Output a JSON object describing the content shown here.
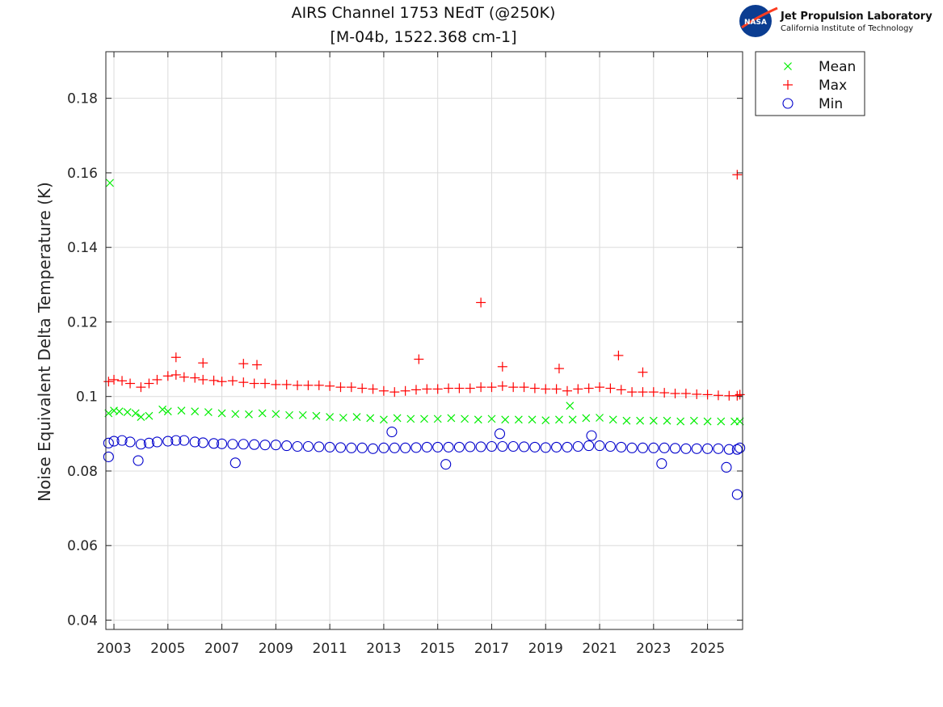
{
  "logo": {
    "name": "Jet Propulsion Laboratory",
    "subtitle": "California Institute of Technology",
    "badge_text": "NASA"
  },
  "chart_data": {
    "type": "scatter",
    "title": "AIRS Channel 1753 NEdT (@250K)",
    "subtitle": "[M-04b, 1522.368 cm-1]",
    "ylabel": "Noise Equivalent Delta Temperature (K)",
    "xlabel": "",
    "xlim": [
      2002.7,
      2026.3
    ],
    "ylim": [
      0.0375,
      0.1925
    ],
    "xticks": [
      "2003",
      "2005",
      "2007",
      "2009",
      "2011",
      "2013",
      "2015",
      "2017",
      "2019",
      "2021",
      "2023",
      "2025"
    ],
    "yticks": [
      "0.04",
      "0.06",
      "0.08",
      "0.1",
      "0.12",
      "0.14",
      "0.16",
      "0.18"
    ],
    "grid": true,
    "legend_position": "outside top-right",
    "colors": {
      "Mean": "#00ee00",
      "Max": "#ff0000",
      "Min": "#0000cc"
    },
    "series": [
      {
        "name": "Mean",
        "marker": "x",
        "x": [
          2002.8,
          2003.0,
          2003.2,
          2003.5,
          2003.8,
          2004.0,
          2004.3,
          2004.8,
          2005.0,
          2005.5,
          2006.0,
          2006.5,
          2007.0,
          2007.5,
          2008.0,
          2008.5,
          2009.0,
          2009.5,
          2010.0,
          2010.5,
          2011.0,
          2011.5,
          2012.0,
          2012.5,
          2013.0,
          2013.5,
          2014.0,
          2014.5,
          2015.0,
          2015.5,
          2016.0,
          2016.5,
          2017.0,
          2017.5,
          2018.0,
          2018.5,
          2019.0,
          2019.5,
          2019.9,
          2020.0,
          2020.5,
          2021.0,
          2021.5,
          2022.0,
          2022.5,
          2023.0,
          2023.5,
          2024.0,
          2024.5,
          2025.0,
          2025.5,
          2026.0,
          2026.2,
          2002.85
        ],
        "y": [
          0.0955,
          0.0962,
          0.096,
          0.0958,
          0.0955,
          0.0945,
          0.0948,
          0.0965,
          0.096,
          0.0962,
          0.096,
          0.0958,
          0.0955,
          0.0953,
          0.0952,
          0.0955,
          0.0953,
          0.095,
          0.095,
          0.0948,
          0.0945,
          0.0943,
          0.0945,
          0.0942,
          0.0938,
          0.0942,
          0.094,
          0.094,
          0.094,
          0.0942,
          0.094,
          0.0938,
          0.094,
          0.0938,
          0.0938,
          0.0938,
          0.0936,
          0.0938,
          0.0975,
          0.0938,
          0.0942,
          0.0943,
          0.0938,
          0.0935,
          0.0935,
          0.0935,
          0.0935,
          0.0933,
          0.0935,
          0.0933,
          0.0933,
          0.0933,
          0.0933,
          0.1573
        ]
      },
      {
        "name": "Max",
        "marker": "+",
        "x": [
          2002.8,
          2003.0,
          2003.3,
          2003.6,
          2004.0,
          2004.3,
          2004.6,
          2005.0,
          2005.3,
          2005.6,
          2006.0,
          2006.3,
          2006.7,
          2007.0,
          2007.4,
          2007.8,
          2008.2,
          2008.6,
          2009.0,
          2009.4,
          2009.8,
          2010.2,
          2010.6,
          2011.0,
          2011.4,
          2011.8,
          2012.2,
          2012.6,
          2013.0,
          2013.4,
          2013.8,
          2014.2,
          2014.6,
          2015.0,
          2015.4,
          2015.8,
          2016.2,
          2016.6,
          2017.0,
          2017.4,
          2017.8,
          2018.2,
          2018.6,
          2019.0,
          2019.4,
          2019.8,
          2020.2,
          2020.6,
          2021.0,
          2021.4,
          2021.8,
          2022.2,
          2022.6,
          2023.0,
          2023.4,
          2023.8,
          2024.2,
          2024.6,
          2025.0,
          2025.4,
          2025.8,
          2026.1,
          2026.2,
          2005.3,
          2006.3,
          2007.8,
          2008.3,
          2014.3,
          2016.6,
          2017.4,
          2019.5,
          2021.7,
          2022.6,
          2026.1
        ],
        "y": [
          0.104,
          0.1045,
          0.1042,
          0.1035,
          0.1025,
          0.1035,
          0.1045,
          0.1055,
          0.1058,
          0.1052,
          0.105,
          0.1045,
          0.1043,
          0.104,
          0.1042,
          0.1038,
          0.1035,
          0.1035,
          0.1032,
          0.1032,
          0.103,
          0.103,
          0.103,
          0.1028,
          0.1025,
          0.1025,
          0.1022,
          0.102,
          0.1015,
          0.1012,
          0.1015,
          0.1018,
          0.102,
          0.102,
          0.1022,
          0.1022,
          0.1022,
          0.1025,
          0.1025,
          0.1028,
          0.1025,
          0.1025,
          0.1022,
          0.102,
          0.102,
          0.1015,
          0.102,
          0.1022,
          0.1025,
          0.1022,
          0.1018,
          0.1012,
          0.1012,
          0.1012,
          0.101,
          0.1008,
          0.1008,
          0.1006,
          0.1005,
          0.1003,
          0.1002,
          0.1002,
          0.1005,
          0.1105,
          0.109,
          0.1088,
          0.1085,
          0.11,
          0.1252,
          0.108,
          0.1075,
          0.111,
          0.1065,
          0.1595
        ]
      },
      {
        "name": "Min",
        "marker": "o",
        "x": [
          2002.8,
          2003.0,
          2003.3,
          2003.6,
          2004.0,
          2004.3,
          2004.6,
          2005.0,
          2005.3,
          2005.6,
          2006.0,
          2006.3,
          2006.7,
          2007.0,
          2007.4,
          2007.8,
          2008.2,
          2008.6,
          2009.0,
          2009.4,
          2009.8,
          2010.2,
          2010.6,
          2011.0,
          2011.4,
          2011.8,
          2012.2,
          2012.6,
          2013.0,
          2013.4,
          2013.8,
          2014.2,
          2014.6,
          2015.0,
          2015.4,
          2015.8,
          2016.2,
          2016.6,
          2017.0,
          2017.4,
          2017.8,
          2018.2,
          2018.6,
          2019.0,
          2019.4,
          2019.8,
          2020.2,
          2020.6,
          2021.0,
          2021.4,
          2021.8,
          2022.2,
          2022.6,
          2023.0,
          2023.4,
          2023.8,
          2024.2,
          2024.6,
          2025.0,
          2025.4,
          2025.8,
          2026.1,
          2026.2,
          2002.8,
          2003.9,
          2007.5,
          2013.3,
          2015.3,
          2017.3,
          2020.7,
          2023.3,
          2025.7,
          2026.1
        ],
        "y": [
          0.0875,
          0.088,
          0.0882,
          0.0878,
          0.0872,
          0.0875,
          0.0878,
          0.088,
          0.0882,
          0.0882,
          0.0878,
          0.0876,
          0.0874,
          0.0873,
          0.0872,
          0.0872,
          0.0871,
          0.087,
          0.087,
          0.0868,
          0.0866,
          0.0866,
          0.0865,
          0.0864,
          0.0863,
          0.0862,
          0.0862,
          0.086,
          0.0862,
          0.0862,
          0.0862,
          0.0863,
          0.0864,
          0.0864,
          0.0864,
          0.0864,
          0.0865,
          0.0865,
          0.0866,
          0.0866,
          0.0866,
          0.0865,
          0.0864,
          0.0863,
          0.0864,
          0.0864,
          0.0866,
          0.0868,
          0.0868,
          0.0866,
          0.0864,
          0.0862,
          0.0862,
          0.0862,
          0.0862,
          0.0861,
          0.086,
          0.086,
          0.086,
          0.086,
          0.0858,
          0.0858,
          0.0862,
          0.0838,
          0.0828,
          0.0822,
          0.0905,
          0.0818,
          0.09,
          0.0895,
          0.082,
          0.081,
          0.0737
        ]
      }
    ]
  }
}
